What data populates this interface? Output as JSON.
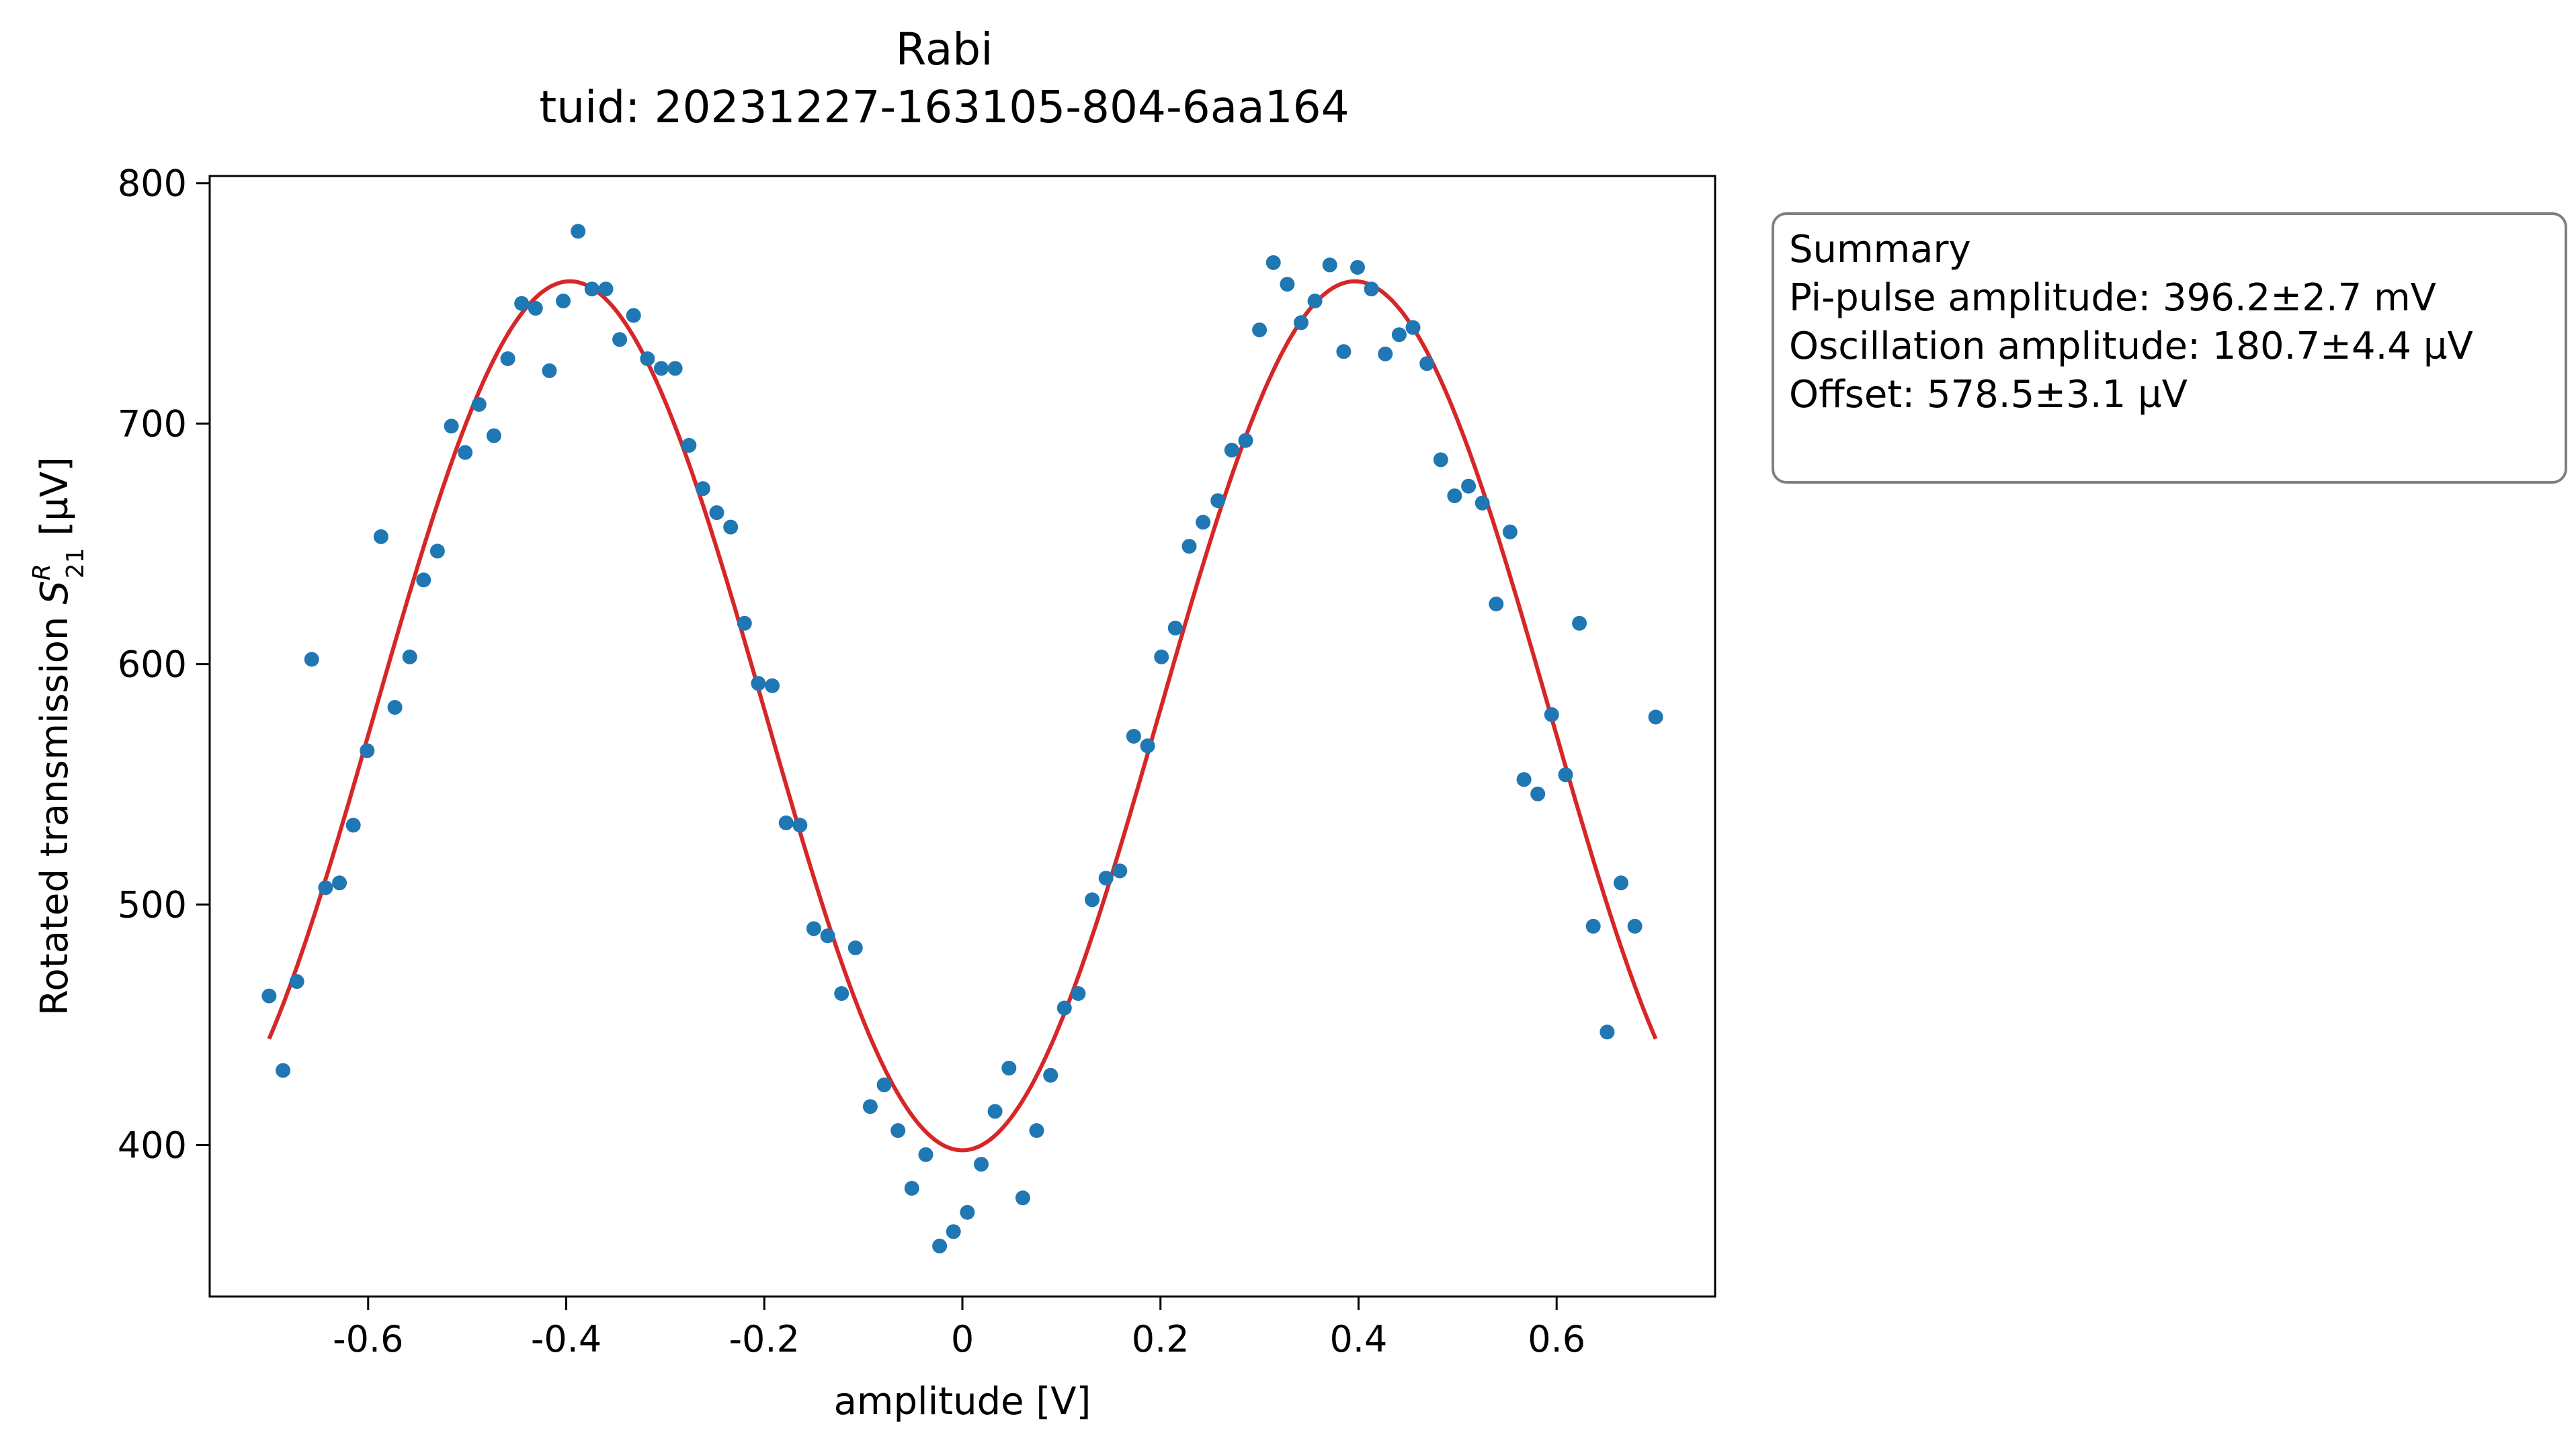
{
  "chart_data": {
    "type": "scatter",
    "title": "Rabi",
    "subtitle": "tuid: 20231227-163105-804-6aa164",
    "xlabel": "amplitude [V]",
    "ylabel_prefix": "Rotated transmission ",
    "ylabel_symbol": "S",
    "ylabel_sup": "R",
    "ylabel_sub": "21",
    "ylabel_unit": " [µV]",
    "xlim": [
      -0.76,
      0.76
    ],
    "ylim": [
      337,
      803
    ],
    "x_ticks": [
      -0.6,
      -0.4,
      -0.2,
      0.0,
      0.2,
      0.4,
      0.6
    ],
    "x_tick_labels": [
      "-0.6",
      "-0.4",
      "-0.2",
      "0",
      "0.2",
      "0.4",
      "0.6"
    ],
    "y_ticks": [
      400,
      500,
      600,
      700,
      800
    ],
    "y_tick_labels": [
      "400",
      "500",
      "600",
      "700",
      "800"
    ],
    "grid": false,
    "colors": {
      "points": "#1f77b4",
      "fit": "#d62728",
      "legend_border": "#808080"
    },
    "series": [
      {
        "kind": "points",
        "x": [
          -0.7,
          -0.686,
          -0.672,
          -0.657,
          -0.643,
          -0.629,
          -0.615,
          -0.601,
          -0.587,
          -0.573,
          -0.558,
          -0.544,
          -0.53,
          -0.516,
          -0.502,
          -0.488,
          -0.473,
          -0.459,
          -0.445,
          -0.431,
          -0.417,
          -0.403,
          -0.388,
          -0.374,
          -0.36,
          -0.346,
          -0.332,
          -0.318,
          -0.304,
          -0.29,
          -0.276,
          -0.262,
          -0.248,
          -0.234,
          -0.22,
          -0.206,
          -0.192,
          -0.178,
          -0.164,
          -0.15,
          -0.136,
          -0.122,
          -0.108,
          -0.093,
          -0.079,
          -0.065,
          -0.051,
          -0.037,
          -0.023,
          -0.009,
          0.005,
          0.019,
          0.033,
          0.047,
          0.061,
          0.075,
          0.089,
          0.103,
          0.117,
          0.131,
          0.145,
          0.159,
          0.173,
          0.187,
          0.201,
          0.215,
          0.229,
          0.243,
          0.258,
          0.272,
          0.286,
          0.3,
          0.314,
          0.328,
          0.342,
          0.356,
          0.371,
          0.385,
          0.399,
          0.413,
          0.427,
          0.441,
          0.455,
          0.469,
          0.483,
          0.497,
          0.511,
          0.525,
          0.539,
          0.553,
          0.567,
          0.581,
          0.595,
          0.609,
          0.623,
          0.637,
          0.651,
          0.665,
          0.679,
          0.7
        ],
        "y": [
          462,
          431,
          468,
          602,
          507,
          509,
          533,
          564,
          653,
          582,
          603,
          635,
          647,
          699,
          688,
          708,
          695,
          727,
          750,
          748,
          722,
          751,
          780,
          756,
          756,
          735,
          745,
          727,
          723,
          723,
          691,
          673,
          663,
          657,
          617,
          592,
          591,
          534,
          533,
          490,
          487,
          463,
          482,
          416,
          425,
          406,
          382,
          396,
          358,
          364,
          372,
          392,
          414,
          432,
          378,
          406,
          429,
          457,
          463,
          502,
          511,
          514,
          570,
          566,
          603,
          615,
          649,
          659,
          668,
          689,
          693,
          739,
          767,
          758,
          742,
          751,
          766,
          730,
          765,
          756,
          729,
          737,
          740,
          725,
          685,
          670,
          674,
          667,
          625,
          655,
          552,
          546,
          579,
          554,
          617,
          491,
          447,
          509,
          491,
          578
        ]
      },
      {
        "kind": "fit",
        "x_range": [
          -0.7,
          0.7
        ],
        "offset": 578.5,
        "amplitude": 180.7,
        "pi_pulse": 0.3962
      }
    ],
    "legend": {
      "placement": "outside-right-top",
      "lines": [
        "Summary",
        "Pi-pulse amplitude: 396.2±2.7 mV",
        "Oscillation amplitude: 180.7±4.4 µV",
        "Offset: 578.5±3.1 µV"
      ]
    }
  }
}
